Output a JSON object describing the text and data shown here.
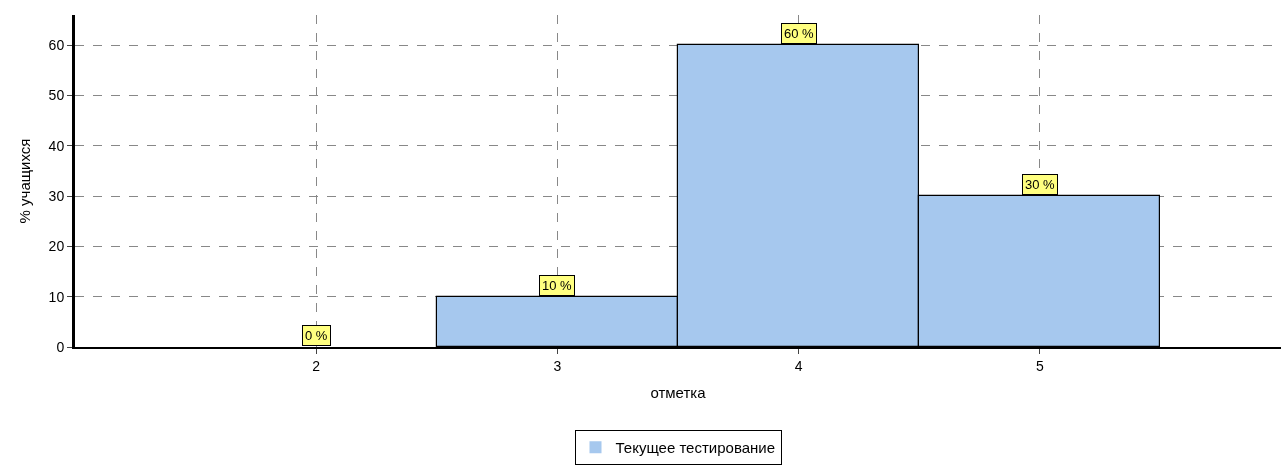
{
  "chart_data": {
    "type": "bar",
    "xlabel": "отметка",
    "ylabel": "% учащихся",
    "x": [
      2,
      3,
      4,
      5
    ],
    "series": [
      {
        "name": "Текущее тестирование",
        "color": "#a6c8ee",
        "values": [
          0,
          10,
          60,
          30
        ],
        "value_labels": [
          "0 %",
          "10 %",
          "60 %",
          "30 %"
        ]
      }
    ],
    "xlim": [
      1,
      6
    ],
    "xticks": [
      2,
      3,
      4,
      5
    ],
    "ylim": [
      0,
      66
    ],
    "yticks": [
      0,
      10,
      20,
      30,
      40,
      50,
      60
    ],
    "grid": true,
    "legend": "bottom"
  }
}
